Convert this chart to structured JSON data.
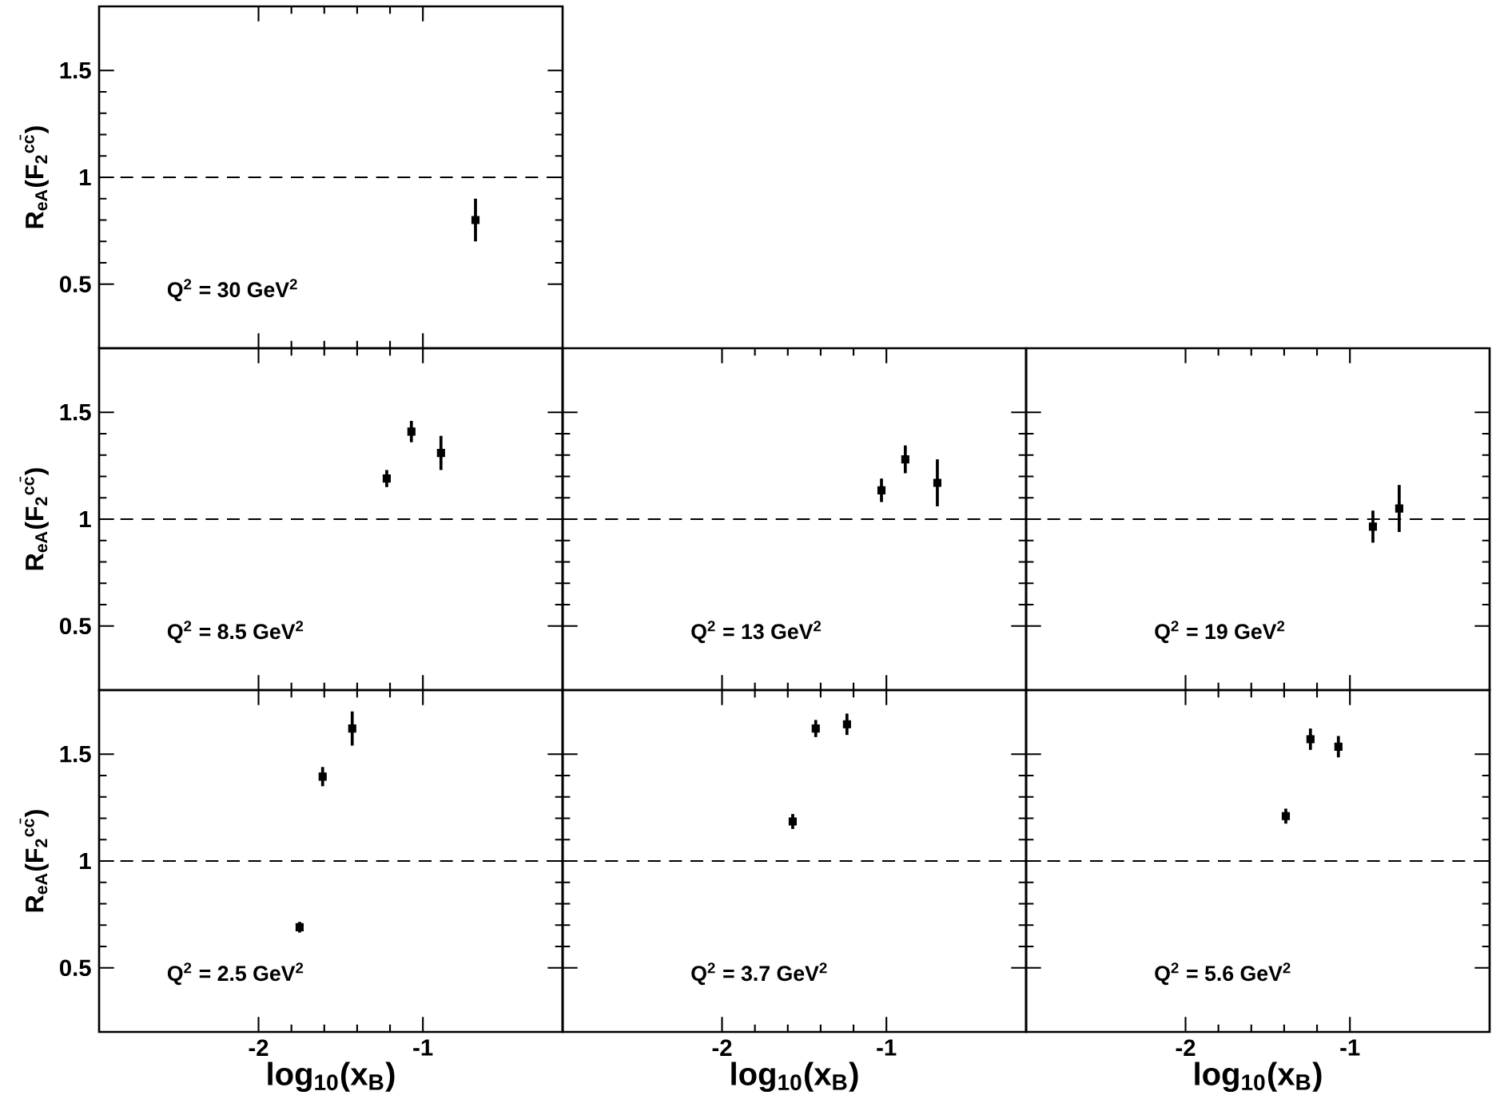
{
  "chart_data": [
    {
      "type": "scatter",
      "ylabel": "R$_{eA}$(F$_{2}$$^{cc̄}$)",
      "x": [
        -0.68
      ],
      "values": [
        0.8
      ],
      "errors": [
        0.1
      ],
      "color": "#000000",
      "marker": "square",
      "xlim": [
        -2.97,
        -0.15
      ],
      "ylim": [
        0.2,
        1.8
      ],
      "xticks": [
        -2,
        -1
      ],
      "yticks": [
        0.5,
        1,
        1.5
      ],
      "tick_labels": "y",
      "ref_lines": [
        {
          "axis": "y",
          "value": 1,
          "line_style": "dashed"
        }
      ],
      "annotations": [
        "Q$^{2}$ = 30 GeV$^{2}$"
      ]
    },
    {
      "type": "scatter",
      "ylabel": "R$_{eA}$(F$_{2}$$^{cc̄}$)",
      "x": [
        -1.22,
        -1.07,
        -0.89
      ],
      "values": [
        1.19,
        1.41,
        1.31
      ],
      "errors": [
        0.04,
        0.05,
        0.08
      ],
      "color": "#000000",
      "marker": "square",
      "xlim": [
        -2.97,
        -0.15
      ],
      "ylim": [
        0.2,
        1.8
      ],
      "xticks": [
        -2,
        -1
      ],
      "yticks": [
        0.5,
        1,
        1.5
      ],
      "tick_labels": "y",
      "ref_lines": [
        {
          "axis": "y",
          "value": 1,
          "line_style": "dashed"
        }
      ],
      "annotations": [
        "Q$^{2}$ = 8.5 GeV$^{2}$"
      ]
    },
    {
      "type": "scatter",
      "x": [
        -1.03,
        -0.885,
        -0.69
      ],
      "values": [
        1.135,
        1.28,
        1.17
      ],
      "errors": [
        0.055,
        0.065,
        0.11
      ],
      "color": "#000000",
      "marker": "square",
      "xlim": [
        -2.97,
        -0.15
      ],
      "ylim": [
        0.2,
        1.8
      ],
      "xticks": [
        -2,
        -1
      ],
      "yticks": [
        0.5,
        1,
        1.5
      ],
      "tick_labels": false,
      "ref_lines": [
        {
          "axis": "y",
          "value": 1,
          "line_style": "dashed"
        }
      ],
      "annotations": [
        "Q$^{2}$ = 13 GeV$^{2}$"
      ]
    },
    {
      "type": "scatter",
      "x": [
        -0.86,
        -0.7
      ],
      "values": [
        0.965,
        1.05
      ],
      "errors": [
        0.075,
        0.11
      ],
      "color": "#000000",
      "marker": "square",
      "xlim": [
        -2.97,
        -0.15
      ],
      "ylim": [
        0.2,
        1.8
      ],
      "xticks": [
        -2,
        -1
      ],
      "yticks": [
        0.5,
        1,
        1.5
      ],
      "tick_labels": false,
      "ref_lines": [
        {
          "axis": "y",
          "value": 1,
          "line_style": "dashed"
        }
      ],
      "annotations": [
        "Q$^{2}$ = 19 GeV$^{2}$"
      ]
    },
    {
      "type": "scatter",
      "xlabel": "log$_{10}$(x$_{B}$)",
      "ylabel": "R$_{eA}$(F$_{2}$$^{cc̄}$)",
      "x": [
        -1.75,
        -1.61,
        -1.43
      ],
      "values": [
        0.69,
        1.395,
        1.62
      ],
      "errors": [
        0.025,
        0.045,
        0.08
      ],
      "color": "#000000",
      "marker": "square",
      "xlim": [
        -2.97,
        -0.15
      ],
      "ylim": [
        0.2,
        1.8
      ],
      "xticks": [
        -2,
        -1
      ],
      "yticks": [
        0.5,
        1,
        1.5
      ],
      "ref_lines": [
        {
          "axis": "y",
          "value": 1,
          "line_style": "dashed"
        }
      ],
      "annotations": [
        "Q$^{2}$ = 2.5 GeV$^{2}$"
      ]
    },
    {
      "type": "scatter",
      "xlabel": "log$_{10}$(x$_{B}$)",
      "x": [
        -1.57,
        -1.43,
        -1.24
      ],
      "values": [
        1.185,
        1.62,
        1.64
      ],
      "errors": [
        0.035,
        0.04,
        0.05
      ],
      "color": "#000000",
      "marker": "square",
      "xlim": [
        -2.97,
        -0.15
      ],
      "ylim": [
        0.2,
        1.8
      ],
      "xticks": [
        -2,
        -1
      ],
      "yticks": [
        0.5,
        1,
        1.5
      ],
      "tick_labels": "x",
      "ref_lines": [
        {
          "axis": "y",
          "value": 1,
          "line_style": "dashed"
        }
      ],
      "annotations": [
        "Q$^{2}$ = 3.7 GeV$^{2}$"
      ]
    },
    {
      "type": "scatter",
      "xlabel": "log$_{10}$(x$_{B}$)",
      "x": [
        -1.39,
        -1.24,
        -1.07
      ],
      "values": [
        1.21,
        1.57,
        1.535
      ],
      "errors": [
        0.035,
        0.05,
        0.05
      ],
      "color": "#000000",
      "marker": "square",
      "xlim": [
        -2.97,
        -0.15
      ],
      "ylim": [
        0.2,
        1.8
      ],
      "xticks": [
        -2,
        -1
      ],
      "yticks": [
        0.5,
        1,
        1.5
      ],
      "tick_labels": "x",
      "ref_lines": [
        {
          "axis": "y",
          "value": 1,
          "line_style": "dashed"
        }
      ],
      "annotations": [
        "Q$^{2}$ = 5.6 GeV$^{2}$"
      ]
    }
  ]
}
